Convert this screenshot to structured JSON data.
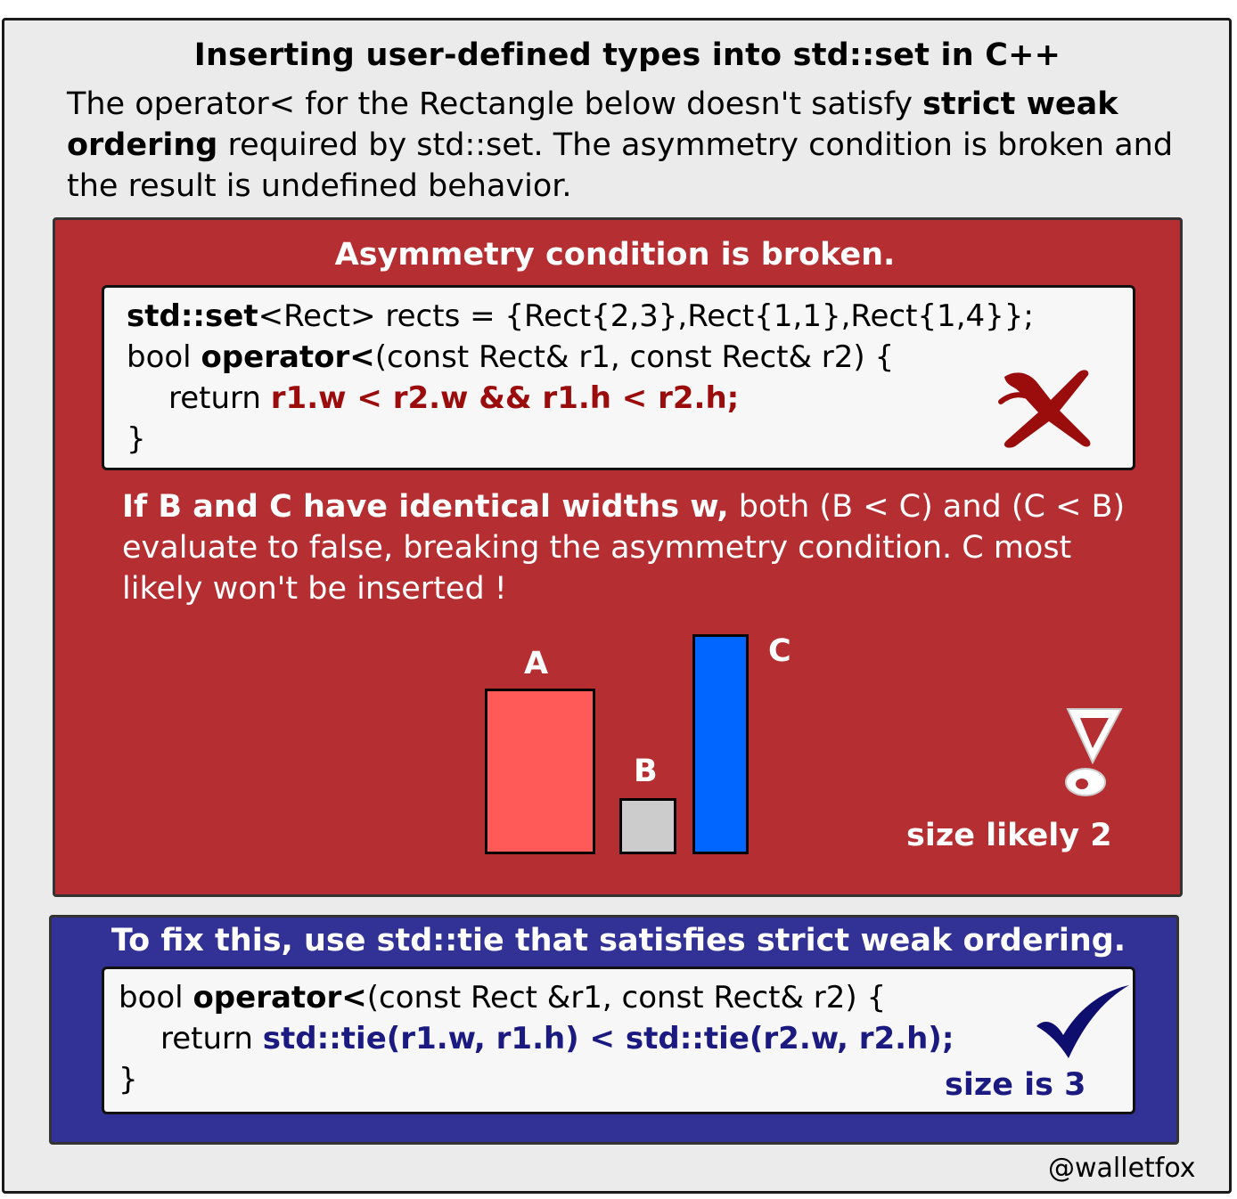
{
  "title": "Inserting user-defined types into std::set in C++",
  "intro": {
    "part1": "The operator< for the Rectangle below doesn't satisfy ",
    "bold1": "strict weak ordering",
    "part2": " required by std::set. The asymmetry condition is broken and the result is undefined behavior."
  },
  "broken_panel": {
    "heading": "Asymmetry condition is broken.",
    "code": {
      "line1_kw": "std::set",
      "line1_rest": "<Rect> rects = {Rect{2,3},Rect{1,1},Rect{1,4}};",
      "line2_pre": "bool ",
      "line2_kw": "operator<",
      "line2_rest": "(const Rect& r1, const Rect& r2) {",
      "line3_pre": "return ",
      "line3_expr": "r1.w < r2.w && r1.h < r2.h;",
      "line4": "}"
    },
    "explanation_bold": "If B and C have identical widths w,",
    "explanation_rest": " both (B < C) and (C < B) evaluate to false, breaking the asymmetry condition. C most likely won't be inserted !",
    "rects": [
      {
        "label": "A",
        "color": "#ff5a58"
      },
      {
        "label": "B",
        "color": "#cccccc"
      },
      {
        "label": "C",
        "color": "#0066ff"
      }
    ],
    "result": "size likely 2",
    "icon_colors": {
      "cross": "#9b0c0c",
      "panel": "#b52e31"
    }
  },
  "fix_panel": {
    "heading": "To fix this, use std::tie that satisfies strict weak ordering.",
    "code": {
      "line1_pre": "bool ",
      "line1_kw": "operator<",
      "line1_rest": "(const Rect &r1, const Rect& r2) {",
      "line2_pre": "return ",
      "line2_expr": "std::tie(r1.w, r1.h) < std::tie(r2.w, r2.h);",
      "line3": "}"
    },
    "result": "size is 3",
    "icon_colors": {
      "check": "#0e0e6e",
      "panel": "#313196"
    }
  },
  "credit": "@walletfox"
}
